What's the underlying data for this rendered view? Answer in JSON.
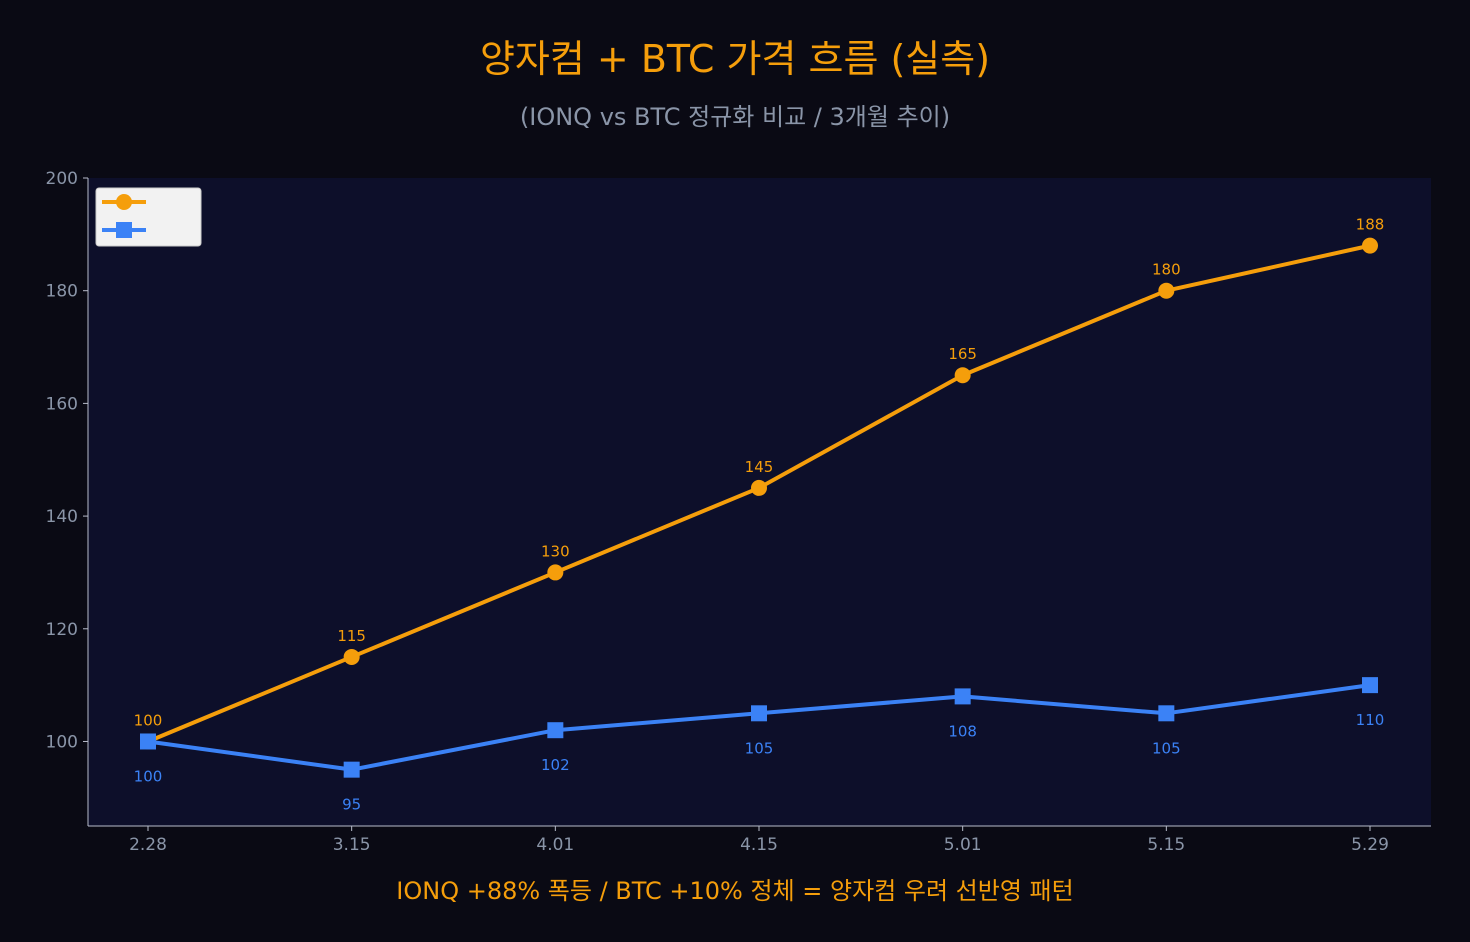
{
  "chart_data": {
    "type": "line",
    "title": "양자컴 + BTC 가격 흐름 (실측)",
    "subtitle": "(IONQ vs BTC 정규화 비교 / 3개월 추이)",
    "caption": "IONQ +88% 폭등 / BTC +10% 정체 = 양자컴 우려 선반영 패턴",
    "xlabel": "",
    "ylabel": "",
    "categories": [
      "2.28",
      "3.15",
      "4.01",
      "4.15",
      "5.01",
      "5.15",
      "5.29"
    ],
    "ylim": [
      85,
      200
    ],
    "yticks": [
      100,
      120,
      140,
      160,
      180,
      200
    ],
    "grid": false,
    "legend": "top-left",
    "series": [
      {
        "values": [
          100,
          115,
          130,
          145,
          165,
          180,
          188
        ],
        "color": "#f59e0b",
        "marker": "circle",
        "label_position": "above"
      },
      {
        "values": [
          100,
          95,
          102,
          105,
          108,
          105,
          110
        ],
        "color": "#3b82f6",
        "marker": "square",
        "label_position": "below"
      }
    ]
  },
  "colors": {
    "background": "#0a0a14",
    "plot_background": "#0d0f2a",
    "axis": "#b8bccb",
    "tick_label": "#8a95a8",
    "title": "#f59e0b"
  }
}
